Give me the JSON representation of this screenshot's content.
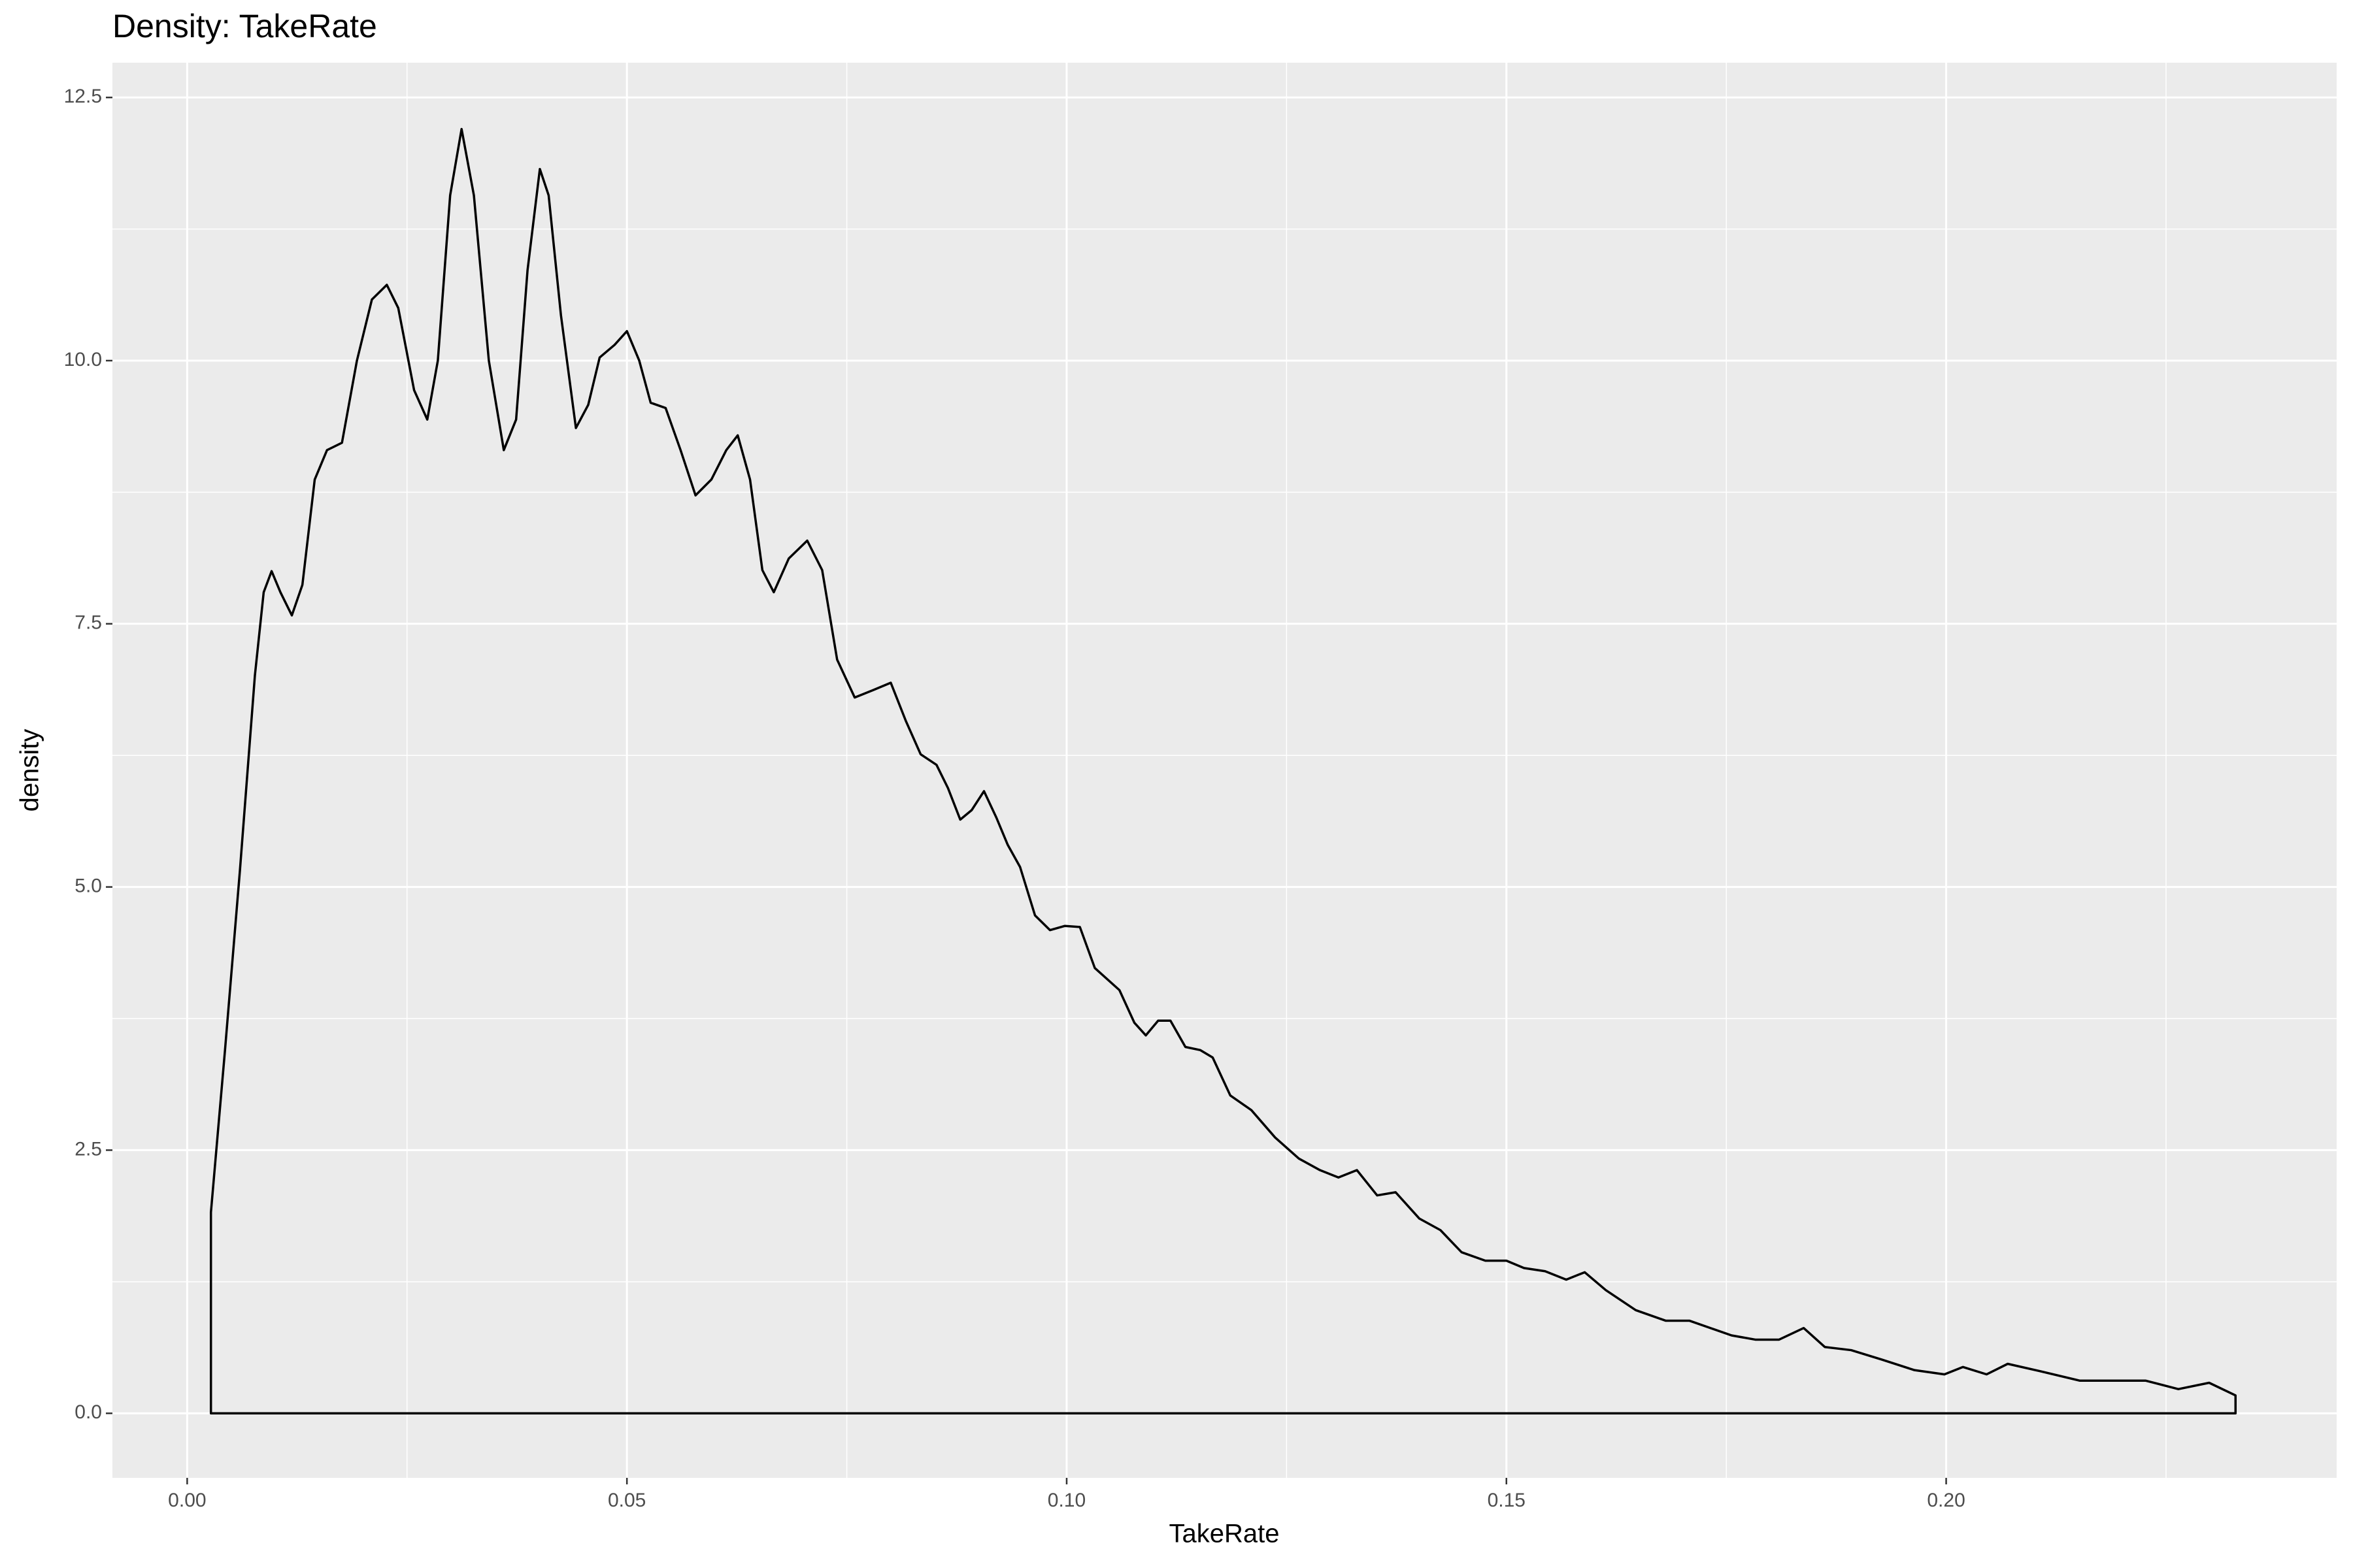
{
  "chart_data": {
    "type": "density",
    "title": "Density: TakeRate",
    "x_label": "TakeRate",
    "y_label": "density",
    "color": "#000000",
    "background": "#EBEBEB",
    "grid": true,
    "x": [
      0.0027,
      0.0027,
      0.0043,
      0.006,
      0.0077,
      0.0087,
      0.0096,
      0.0106,
      0.0119,
      0.0131,
      0.0145,
      0.0159,
      0.0176,
      0.0193,
      0.021,
      0.0227,
      0.024,
      0.0258,
      0.0273,
      0.0285,
      0.0299,
      0.0312,
      0.0326,
      0.0343,
      0.036,
      0.0374,
      0.0387,
      0.0401,
      0.0411,
      0.0425,
      0.0442,
      0.0456,
      0.0469,
      0.0486,
      0.05,
      0.0514,
      0.0527,
      0.0544,
      0.0561,
      0.0578,
      0.0596,
      0.0613,
      0.0626,
      0.064,
      0.0654,
      0.0667,
      0.0684,
      0.0705,
      0.0722,
      0.0739,
      0.0759,
      0.078,
      0.08,
      0.0817,
      0.0834,
      0.0852,
      0.0865,
      0.0879,
      0.0892,
      0.0906,
      0.092,
      0.0933,
      0.0947,
      0.0964,
      0.0981,
      0.0998,
      0.1015,
      0.1032,
      0.106,
      0.1077,
      0.109,
      0.1104,
      0.1118,
      0.1135,
      0.1152,
      0.1166,
      0.1186,
      0.121,
      0.1237,
      0.1264,
      0.1288,
      0.1309,
      0.133,
      0.1353,
      0.1374,
      0.1401,
      0.1425,
      0.1449,
      0.1476,
      0.15,
      0.152,
      0.1544,
      0.1568,
      0.1589,
      0.1613,
      0.1647,
      0.1681,
      0.1708,
      0.1732,
      0.1756,
      0.1783,
      0.181,
      0.1838,
      0.1862,
      0.1892,
      0.1927,
      0.1964,
      0.1998,
      0.2019,
      0.2046,
      0.207,
      0.2107,
      0.2152,
      0.2193,
      0.2227,
      0.2264,
      0.2299,
      0.2329,
      0.2329
    ],
    "values": [
      0,
      1.91,
      3.45,
      5.16,
      7.01,
      7.8,
      8.0,
      7.8,
      7.58,
      7.87,
      8.87,
      9.15,
      9.22,
      10.0,
      10.58,
      10.72,
      10.5,
      9.72,
      9.44,
      10.0,
      11.57,
      12.2,
      11.57,
      10.0,
      9.15,
      9.44,
      10.86,
      11.82,
      11.57,
      10.43,
      9.36,
      9.58,
      10.03,
      10.15,
      10.28,
      10.0,
      9.6,
      9.55,
      9.15,
      8.72,
      8.87,
      9.15,
      9.29,
      8.87,
      8.01,
      7.8,
      8.12,
      8.29,
      8.01,
      7.16,
      6.8,
      6.87,
      6.94,
      6.58,
      6.26,
      6.16,
      5.94,
      5.64,
      5.73,
      5.91,
      5.66,
      5.4,
      5.19,
      4.73,
      4.59,
      4.63,
      4.62,
      4.23,
      4.02,
      3.71,
      3.59,
      3.73,
      3.73,
      3.48,
      3.45,
      3.38,
      3.02,
      2.88,
      2.62,
      2.42,
      2.31,
      2.24,
      2.31,
      2.07,
      2.1,
      1.85,
      1.74,
      1.53,
      1.45,
      1.45,
      1.38,
      1.35,
      1.27,
      1.34,
      1.17,
      0.98,
      0.88,
      0.88,
      0.81,
      0.74,
      0.7,
      0.7,
      0.81,
      0.63,
      0.6,
      0.51,
      0.41,
      0.37,
      0.44,
      0.37,
      0.47,
      0.4,
      0.31,
      0.31,
      0.31,
      0.23,
      0.29,
      0.17,
      0
    ],
    "xlim": [
      -0.0085,
      0.2444
    ],
    "ylim": [
      -0.613,
      12.83
    ],
    "xticks": [
      {
        "value": 0,
        "label": "0.00"
      },
      {
        "value": 0.05,
        "label": "0.05"
      },
      {
        "value": 0.1,
        "label": "0.10"
      },
      {
        "value": 0.15,
        "label": "0.15"
      },
      {
        "value": 0.2,
        "label": "0.20"
      }
    ],
    "yticks": [
      {
        "value": 0,
        "label": "0.0"
      },
      2.5,
      {
        "value": 5,
        "label": "5.0"
      },
      7.5,
      {
        "value": 10,
        "label": "10.0"
      },
      12.5
    ]
  }
}
